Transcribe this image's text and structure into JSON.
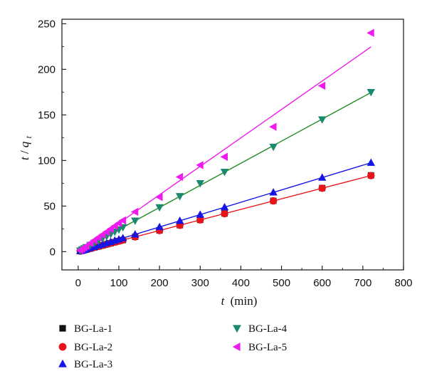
{
  "chart_data": {
    "type": "scatter",
    "xlabel": {
      "var": "t",
      "unit": "(min)"
    },
    "ylabel": {
      "var": "t",
      "sep": "/",
      "var2": "q",
      "sub": "t"
    },
    "xlim": [
      -40,
      800
    ],
    "ylim": [
      -20,
      255
    ],
    "x_ticks": [
      0,
      100,
      200,
      300,
      400,
      500,
      600,
      700,
      800
    ],
    "y_ticks": [
      0,
      50,
      100,
      150,
      200,
      250
    ],
    "x": [
      5,
      10,
      15,
      20,
      30,
      40,
      50,
      60,
      70,
      80,
      90,
      100,
      110,
      140,
      200,
      250,
      300,
      360,
      480,
      600,
      720
    ],
    "series": [
      {
        "name": "BG-La-1",
        "marker": "square",
        "color": "#111111",
        "values": [
          0.6,
          1.2,
          1.8,
          2.4,
          3.5,
          4.7,
          5.8,
          7.0,
          8.2,
          9.3,
          10.5,
          11.7,
          12.8,
          16.3,
          23.3,
          29.1,
          34.9,
          41.9,
          55.8,
          69.8,
          83.7
        ],
        "fit": null
      },
      {
        "name": "BG-La-2",
        "marker": "circle",
        "color": "#e8141a",
        "values": [
          0.6,
          1.2,
          1.8,
          2.4,
          3.5,
          4.7,
          5.8,
          7.0,
          8.1,
          9.3,
          10.5,
          11.6,
          12.8,
          16.3,
          23.2,
          29.0,
          34.8,
          41.8,
          55.7,
          69.6,
          83.5
        ],
        "fit": {
          "slope": 0.116,
          "intercept": 0,
          "color": "#e8141a"
        }
      },
      {
        "name": "BG-La-3",
        "marker": "triangle-up",
        "color": "#1515e6",
        "values": [
          0.7,
          1.4,
          2.0,
          2.7,
          4.1,
          5.4,
          6.8,
          8.1,
          9.5,
          10.8,
          12.2,
          13.5,
          14.9,
          19.0,
          27.1,
          33.9,
          40.7,
          48.8,
          65.1,
          81.3,
          97.6
        ],
        "fit": {
          "slope": 0.1355,
          "intercept": 0,
          "color": "#1515e6"
        }
      },
      {
        "name": "BG-La-4",
        "marker": "triangle-down",
        "color": "#1a8a6e",
        "values": [
          1.2,
          2.4,
          3.6,
          4.9,
          7.3,
          9.7,
          12.1,
          14.6,
          17.0,
          19.4,
          21.9,
          24.3,
          26.7,
          34.0,
          48.6,
          60.8,
          75.0,
          87.5,
          115.0,
          145.0,
          175.0
        ],
        "fit": {
          "slope": 0.2425,
          "intercept": 0,
          "color": "#228b22"
        }
      },
      {
        "name": "BG-La-5",
        "marker": "triangle-left",
        "color": "#ee1aee",
        "values": [
          1.6,
          3.1,
          4.7,
          6.2,
          9.4,
          12.5,
          15.6,
          18.7,
          21.8,
          24.9,
          28.1,
          31.2,
          34.3,
          43.7,
          60.0,
          82.0,
          95.0,
          104.0,
          137.0,
          182.0,
          240.0
        ],
        "fit": {
          "slope": 0.312,
          "intercept": 0,
          "color": "#ee1aee"
        }
      }
    ],
    "legend_placement": "bottom"
  }
}
